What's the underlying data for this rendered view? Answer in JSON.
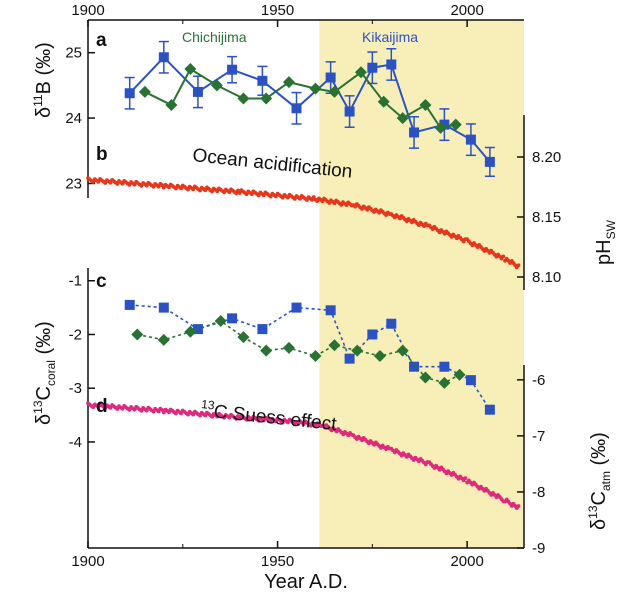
{
  "chart_data": {
    "type": "scatter",
    "xlabel": "Year A.D.",
    "xlim": [
      1900,
      2015
    ],
    "x_ticks": [
      "1900",
      "1950",
      "2000"
    ],
    "shaded_region": {
      "from": 1961,
      "to": 2015,
      "color": "#f8efb8"
    },
    "colors": {
      "blue": "#2a52c6",
      "green": "#287232",
      "red": "#e8361a",
      "magenta": "#e0287c"
    },
    "panels": [
      {
        "label": "a",
        "ylabel_main": "δ",
        "ylabel_sup": "11",
        "ylabel_rest": "B (‰)",
        "ylim": [
          22.9,
          25.5
        ],
        "y_ticks": [
          "23",
          "24",
          "25"
        ],
        "series": [
          {
            "name": "Kikaijima",
            "color": "#2a52c6",
            "marker": "square",
            "x": [
              1911,
              1920,
              1929,
              1938,
              1946,
              1955,
              1964,
              1969,
              1975,
              1980,
              1986,
              1994,
              2001,
              2006
            ],
            "y": [
              24.38,
              24.93,
              24.4,
              24.74,
              24.57,
              24.15,
              24.62,
              24.1,
              24.77,
              24.82,
              23.78,
              23.9,
              23.67,
              23.33
            ],
            "err": [
              0.24,
              0.24,
              0.24,
              0.2,
              0.22,
              0.24,
              0.24,
              0.24,
              0.24,
              0.24,
              0.24,
              0.24,
              0.24,
              0.22
            ]
          },
          {
            "name": "Chichijima",
            "color": "#287232",
            "marker": "diamond",
            "x": [
              1915,
              1922,
              1927,
              1934,
              1941,
              1947,
              1953,
              1960,
              1965,
              1972,
              1978,
              1983,
              1989,
              1993,
              1997
            ],
            "y": [
              24.4,
              24.2,
              24.75,
              24.5,
              24.3,
              24.3,
              24.55,
              24.45,
              24.4,
              24.7,
              24.25,
              24.0,
              24.2,
              23.85,
              23.9
            ]
          }
        ]
      },
      {
        "label": "b",
        "ylabel_main": "pH",
        "ylabel_sub": "SW",
        "ylim": [
          8.085,
          8.235
        ],
        "y_ticks": [
          "8.10",
          "8.15",
          "8.20"
        ],
        "annotation": "Ocean acidification",
        "series": [
          {
            "name": "",
            "color": "#e8361a",
            "marker": "dot",
            "x": [
              1900,
              1920,
              1940,
              1960,
              1970,
              1980,
              1990,
              2000,
              2010,
              2014
            ],
            "y": [
              8.181,
              8.176,
              8.171,
              8.165,
              8.16,
              8.152,
              8.142,
              8.13,
              8.115,
              8.108
            ]
          }
        ]
      },
      {
        "label": "c",
        "ylabel_main": "δ",
        "ylabel_sup": "13",
        "ylabel_mid": "C",
        "ylabel_sub": "coral",
        "ylabel_rest": " (‰)",
        "ylim": [
          -4.15,
          -0.8
        ],
        "y_ticks": [
          "-1",
          "-2",
          "-3",
          "-4"
        ],
        "series": [
          {
            "name": "",
            "color": "#2a52c6",
            "marker": "square",
            "x": [
              1911,
              1920,
              1929,
              1938,
              1946,
              1955,
              1964,
              1969,
              1975,
              1980,
              1986,
              1994,
              2001,
              2006
            ],
            "y": [
              -1.45,
              -1.5,
              -1.9,
              -1.7,
              -1.9,
              -1.5,
              -1.55,
              -2.45,
              -2.0,
              -1.8,
              -2.6,
              -2.6,
              -2.85,
              -3.4
            ]
          },
          {
            "name": "",
            "color": "#287232",
            "marker": "diamond",
            "x": [
              1913,
              1920,
              1927,
              1935,
              1941,
              1947,
              1953,
              1960,
              1965,
              1971,
              1977,
              1983,
              1989,
              1994,
              1998
            ],
            "y": [
              -2.0,
              -2.1,
              -1.95,
              -1.75,
              -2.05,
              -2.3,
              -2.25,
              -2.4,
              -2.2,
              -2.3,
              -2.4,
              -2.3,
              -2.8,
              -2.9,
              -2.75
            ]
          }
        ]
      },
      {
        "label": "d",
        "ylabel_main": "δ",
        "ylabel_sup": "13",
        "ylabel_mid": "C",
        "ylabel_sub": "atm",
        "ylabel_rest": " (‰)",
        "ylim": [
          -9.0,
          -5.7
        ],
        "y_ticks": [
          "-6",
          "-7",
          "-8",
          "-9"
        ],
        "annotation_sup": "13",
        "annotation": "C Suess effect",
        "series": [
          {
            "name": "",
            "color": "#e0287c",
            "marker": "dot",
            "x": [
              1900,
              1920,
              1940,
              1955,
              1962,
              1970,
              1980,
              1990,
              2000,
              2010,
              2014
            ],
            "y": [
              -6.45,
              -6.55,
              -6.67,
              -6.75,
              -6.82,
              -7.0,
              -7.25,
              -7.5,
              -7.8,
              -8.15,
              -8.3
            ]
          }
        ]
      }
    ],
    "site_labels": [
      "Chichijima",
      "Kikaijima"
    ]
  }
}
